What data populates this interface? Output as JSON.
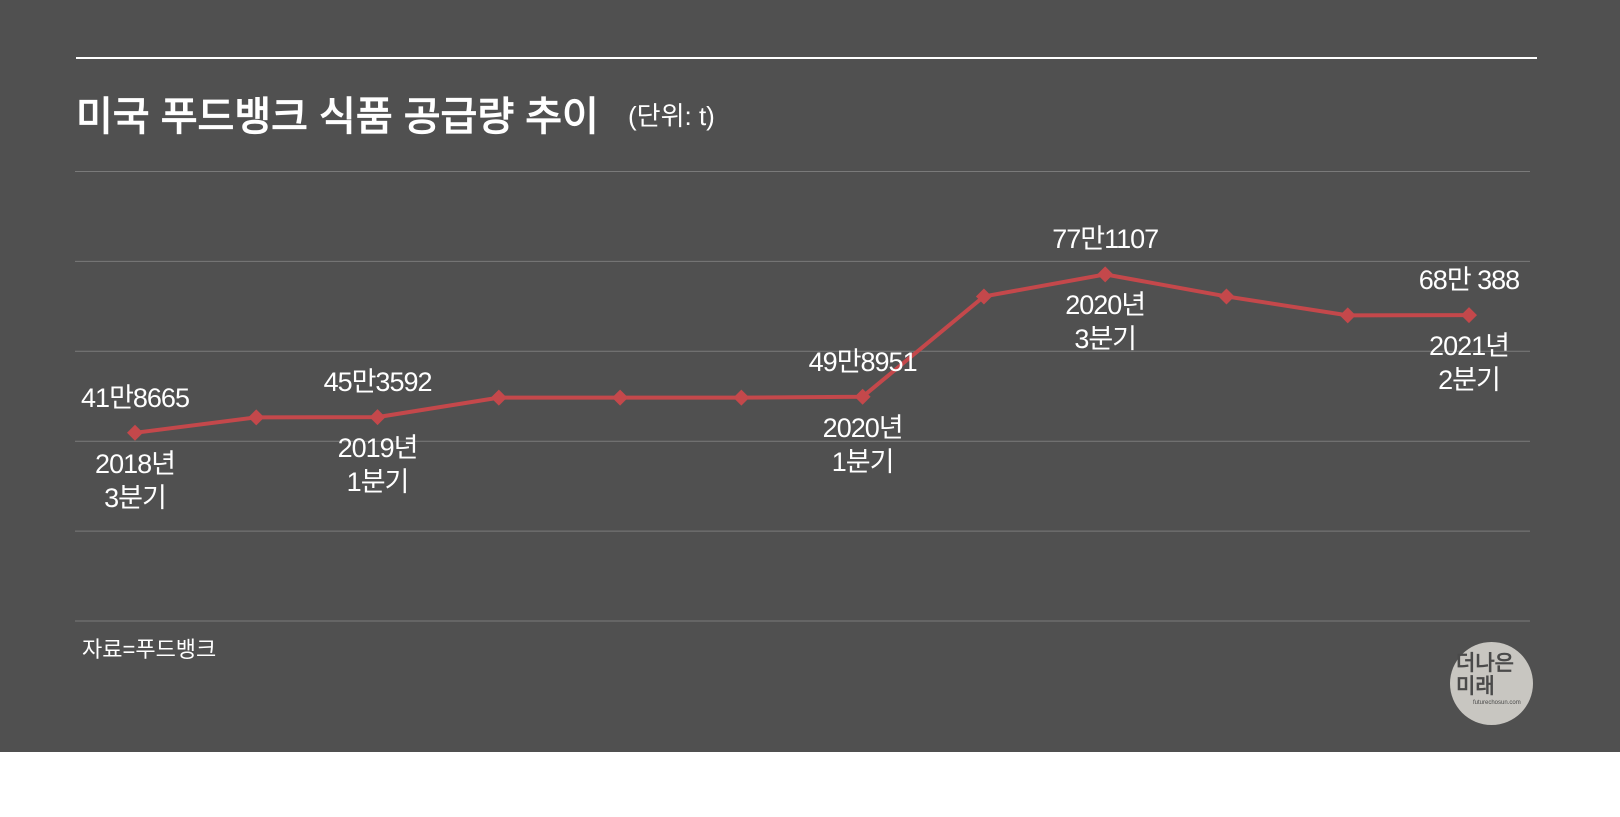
{
  "chart_data": {
    "type": "line",
    "title": "미국 푸드뱅크 식품 공급량 추이",
    "subtitle": "(단위: t)",
    "source": "자료=푸드뱅크",
    "logo": {
      "name": "더나은\n미래",
      "url": "futurechosun.com"
    },
    "categories": [
      "2018년\n3분기",
      null,
      "2019년\n1분기",
      null,
      null,
      null,
      "2020년\n1분기",
      null,
      "2020년\n3분기",
      null,
      null,
      "2021년\n2분기"
    ],
    "series": [
      {
        "name": "식품 공급량",
        "color": "#c4484b",
        "values": [
          418665,
          453000,
          453592,
          497000,
          497000,
          497000,
          498951,
          722000,
          771107,
          722000,
          680000,
          680388
        ],
        "value_labels": [
          "41만8665",
          null,
          "45만3592",
          null,
          null,
          null,
          "49만8951",
          null,
          "77만1107",
          null,
          null,
          "68만 388"
        ]
      }
    ],
    "ylim": [
      0,
      1000000
    ],
    "yticks": [
      0,
      200000,
      400000,
      600000,
      800000,
      1000000
    ],
    "grid": true
  }
}
